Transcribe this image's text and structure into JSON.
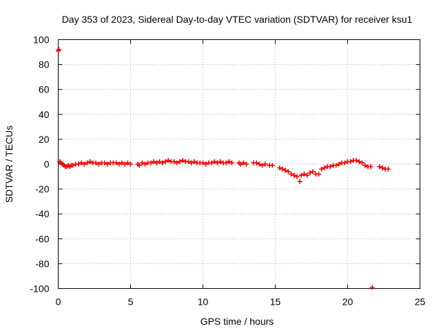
{
  "chart_data": {
    "type": "scatter",
    "title": "Day 353 of 2023, Sidereal Day-to-day VTEC variation (SDTVAR) for receiver ksu1",
    "xlabel": "GPS time / hours",
    "ylabel": "SDTVAR / TECUs",
    "xlim": [
      0,
      25
    ],
    "ylim": [
      -100,
      100
    ],
    "xticks": [
      0,
      5,
      10,
      15,
      20,
      25
    ],
    "yticks": [
      -100,
      -80,
      -60,
      -40,
      -20,
      0,
      20,
      40,
      60,
      80,
      100
    ],
    "grid": true,
    "marker": "plus",
    "series": [
      {
        "name": "SDTVAR",
        "color": "#ff0000",
        "x": [
          0.0,
          0.05,
          0.1,
          0.2,
          0.3,
          0.4,
          0.5,
          0.6,
          0.7,
          0.8,
          0.9,
          1.0,
          1.2,
          1.4,
          1.6,
          1.8,
          2.0,
          2.2,
          2.4,
          2.6,
          2.8,
          3.0,
          3.2,
          3.4,
          3.6,
          3.8,
          4.0,
          4.2,
          4.4,
          4.6,
          4.8,
          5.0,
          5.5,
          5.6,
          5.8,
          6.0,
          6.2,
          6.4,
          6.6,
          6.8,
          7.0,
          7.2,
          7.4,
          7.6,
          7.8,
          8.0,
          8.2,
          8.4,
          8.6,
          8.8,
          9.0,
          9.2,
          9.4,
          9.6,
          9.8,
          10.0,
          10.2,
          10.4,
          10.6,
          10.8,
          11.0,
          11.2,
          11.4,
          11.6,
          11.8,
          12.0,
          12.5,
          12.6,
          12.8,
          13.0,
          13.5,
          13.7,
          13.9,
          14.1,
          14.3,
          14.6,
          14.8,
          15.3,
          15.5,
          15.7,
          15.9,
          16.1,
          16.3,
          16.5,
          16.7,
          16.8,
          17.0,
          17.2,
          17.4,
          17.6,
          17.8,
          18.0,
          18.2,
          18.4,
          18.6,
          18.8,
          19.0,
          19.2,
          19.4,
          19.6,
          19.8,
          20.0,
          20.2,
          20.4,
          20.6,
          20.8,
          21.0,
          21.2,
          21.4,
          21.6,
          21.7,
          22.2,
          22.4,
          22.6,
          22.8
        ],
        "y": [
          91,
          92,
          2,
          1,
          0,
          -1,
          -2,
          -2,
          -1,
          -2,
          -1,
          -1,
          0,
          0,
          1,
          0,
          1,
          2,
          1,
          1,
          0,
          1,
          1,
          0,
          1,
          1,
          1,
          0,
          1,
          0,
          1,
          0,
          0,
          -1,
          1,
          0,
          1,
          1,
          2,
          1,
          2,
          1,
          2,
          3,
          2,
          2,
          1,
          2,
          3,
          2,
          2,
          1,
          2,
          1,
          1,
          1,
          0,
          1,
          1,
          2,
          1,
          2,
          1,
          1,
          2,
          1,
          1,
          0,
          1,
          0,
          1,
          1,
          0,
          -1,
          0,
          -1,
          -1,
          -3,
          -4,
          -5,
          -6,
          -8,
          -9,
          -10,
          -14,
          -9,
          -8,
          -9,
          -7,
          -6,
          -8,
          -8,
          -4,
          -3,
          -2,
          -2,
          -1,
          -1,
          0,
          1,
          1,
          2,
          2,
          3,
          3,
          2,
          1,
          -1,
          -2,
          -2,
          -99,
          -2,
          -3,
          -4,
          -4
        ]
      }
    ]
  }
}
